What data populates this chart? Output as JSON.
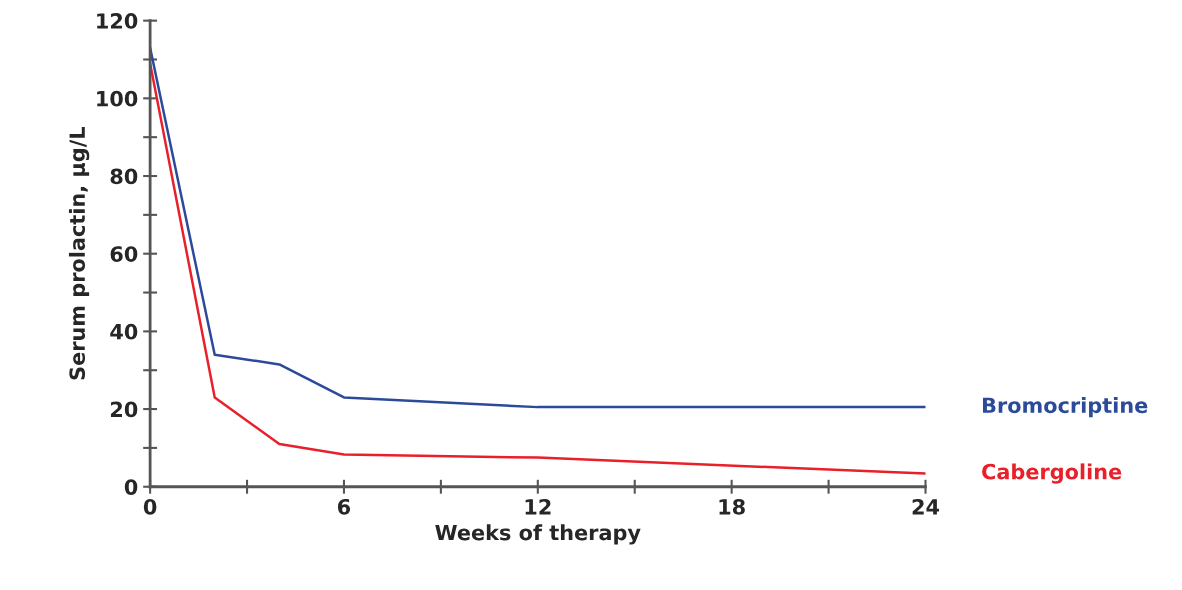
{
  "chart_data": {
    "type": "line",
    "xlabel": "Weeks of therapy",
    "ylabel": "Serum prolactin, µg/L",
    "xlim": [
      0,
      24
    ],
    "xticks": [
      0,
      {
        "value": 3,
        "label": null
      },
      6,
      {
        "value": 9,
        "label": null
      },
      12,
      {
        "value": 15,
        "label": null
      },
      18,
      {
        "value": 21,
        "label": null
      },
      24
    ],
    "ylim": [
      0,
      120
    ],
    "yticks": [
      0,
      {
        "value": 10,
        "label": null
      },
      20,
      {
        "value": 30,
        "label": null
      },
      40,
      {
        "value": 50,
        "label": null
      },
      60,
      {
        "value": 70,
        "label": null
      },
      80,
      {
        "value": 90,
        "label": null
      },
      100,
      {
        "value": 110,
        "label": null
      },
      120
    ],
    "grid": false,
    "legend": false,
    "marker": "none",
    "line_style": "solid",
    "series": [
      {
        "name": "Bromocriptine",
        "color": "#2b4a9a",
        "x": [
          0,
          2,
          4,
          6,
          12,
          24
        ],
        "values": [
          113,
          34,
          31.5,
          23,
          20.5,
          20.5
        ]
      },
      {
        "name": "Cabergoline",
        "color": "#e8202a",
        "x": [
          0,
          2,
          4,
          6,
          12,
          24
        ],
        "values": [
          109,
          23,
          11,
          8.3,
          7.5,
          3.4
        ]
      }
    ]
  }
}
